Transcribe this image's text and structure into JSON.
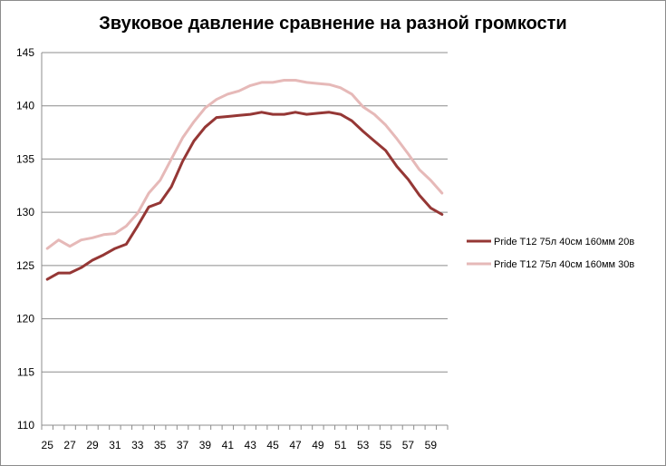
{
  "chart_data": {
    "type": "line",
    "title": "Звуковое давление сравнение на разной  громкости",
    "xlabel": "",
    "ylabel": "",
    "ylim": [
      110,
      145
    ],
    "yticks": [
      110,
      115,
      120,
      125,
      130,
      135,
      140,
      145
    ],
    "x": [
      25,
      26,
      27,
      28,
      29,
      30,
      31,
      32,
      33,
      34,
      35,
      36,
      37,
      38,
      39,
      40,
      41,
      42,
      43,
      44,
      45,
      46,
      47,
      48,
      49,
      50,
      51,
      52,
      53,
      54,
      55,
      56,
      57,
      58,
      59,
      60
    ],
    "xtick_labels": [
      "25",
      "27",
      "29",
      "31",
      "33",
      "35",
      "37",
      "39",
      "41",
      "43",
      "45",
      "47",
      "49",
      "51",
      "53",
      "55",
      "57",
      "59"
    ],
    "grid": "horizontal",
    "legend_position": "right",
    "series": [
      {
        "name": "Pride T12 75л 40см  160мм  20в",
        "color": "#953735",
        "values": [
          123.7,
          124.3,
          124.3,
          124.8,
          125.5,
          126.0,
          126.6,
          127.0,
          128.7,
          130.5,
          130.9,
          132.4,
          134.8,
          136.7,
          138.0,
          138.9,
          139.0,
          139.1,
          139.2,
          139.4,
          139.2,
          139.2,
          139.4,
          139.2,
          139.3,
          139.4,
          139.2,
          138.6,
          137.6,
          136.7,
          135.8,
          134.3,
          133.1,
          131.6,
          130.4,
          129.8
        ]
      },
      {
        "name": "Pride T12 75л 40см  160мм 30в",
        "color": "#e6b9b8",
        "values": [
          126.6,
          127.4,
          126.8,
          127.4,
          127.6,
          127.9,
          128.0,
          128.7,
          129.9,
          131.8,
          133.0,
          135.0,
          137.0,
          138.5,
          139.8,
          140.6,
          141.1,
          141.4,
          141.9,
          142.2,
          142.2,
          142.4,
          142.4,
          142.2,
          142.1,
          142.0,
          141.7,
          141.1,
          139.9,
          139.2,
          138.2,
          136.9,
          135.5,
          134.0,
          133.0,
          131.8
        ]
      }
    ]
  }
}
